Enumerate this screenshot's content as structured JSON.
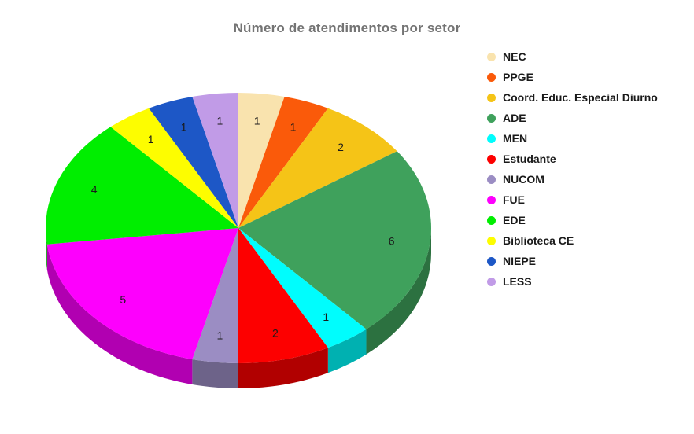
{
  "page": {
    "background_color": "#FFFFFF"
  },
  "chart_data": {
    "type": "pie",
    "is3d": true,
    "title": "Número de atendimentos por setor",
    "title_color": "#747474",
    "label_color": "#1A1A1A",
    "legend_text_color": "#1A1A1A",
    "legend_position": "right",
    "total": 26,
    "categories": [
      "NEC",
      "PPGE",
      "Coord. Educ. Especial Diurno",
      "ADE",
      "MEN",
      "Estudante",
      "NUCOM",
      "FUE",
      "EDE",
      "Biblioteca CE",
      "NIEPE",
      "LESS"
    ],
    "values": [
      1,
      1,
      2,
      6,
      1,
      2,
      1,
      5,
      4,
      1,
      1,
      1
    ],
    "colors": [
      "#F9E3AE",
      "#FA5A0A",
      "#F5C417",
      "#3FA15C",
      "#00FDFD",
      "#FD0000",
      "#9B8DC3",
      "#FD00FD",
      "#00EE00",
      "#FDFD00",
      "#1D57C6",
      "#C19BE7"
    ],
    "slice_value_labels": [
      "1",
      "1",
      "2",
      "6",
      "1",
      "2",
      "1",
      "5",
      "4",
      "1",
      "1",
      "1"
    ],
    "start_angle_deg": 0,
    "direction": "clockwise"
  }
}
